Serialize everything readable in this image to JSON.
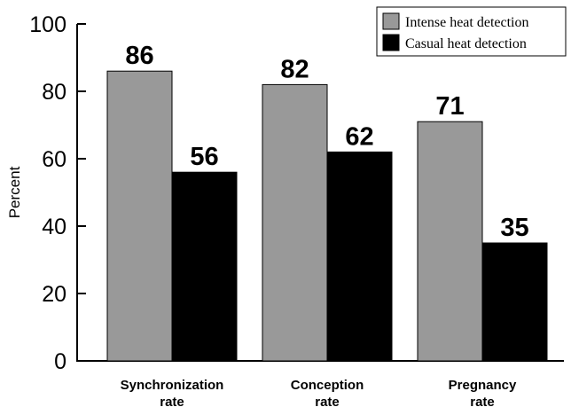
{
  "chart_data": {
    "type": "bar",
    "categories": [
      [
        "Synchronization",
        "rate"
      ],
      [
        "Conception",
        "rate"
      ],
      [
        "Pregnancy",
        "rate"
      ]
    ],
    "series": [
      {
        "name": "Intense heat detection",
        "values": [
          86,
          82,
          71
        ],
        "color": "#999999"
      },
      {
        "name": "Casual heat detection",
        "values": [
          56,
          62,
          35
        ],
        "color": "#000000"
      }
    ],
    "title": "",
    "xlabel": "",
    "ylabel": "Percent",
    "ylim": [
      0,
      100
    ],
    "yticks": [
      0,
      20,
      40,
      60,
      80,
      100
    ],
    "grid": false,
    "legend": "top-right"
  }
}
